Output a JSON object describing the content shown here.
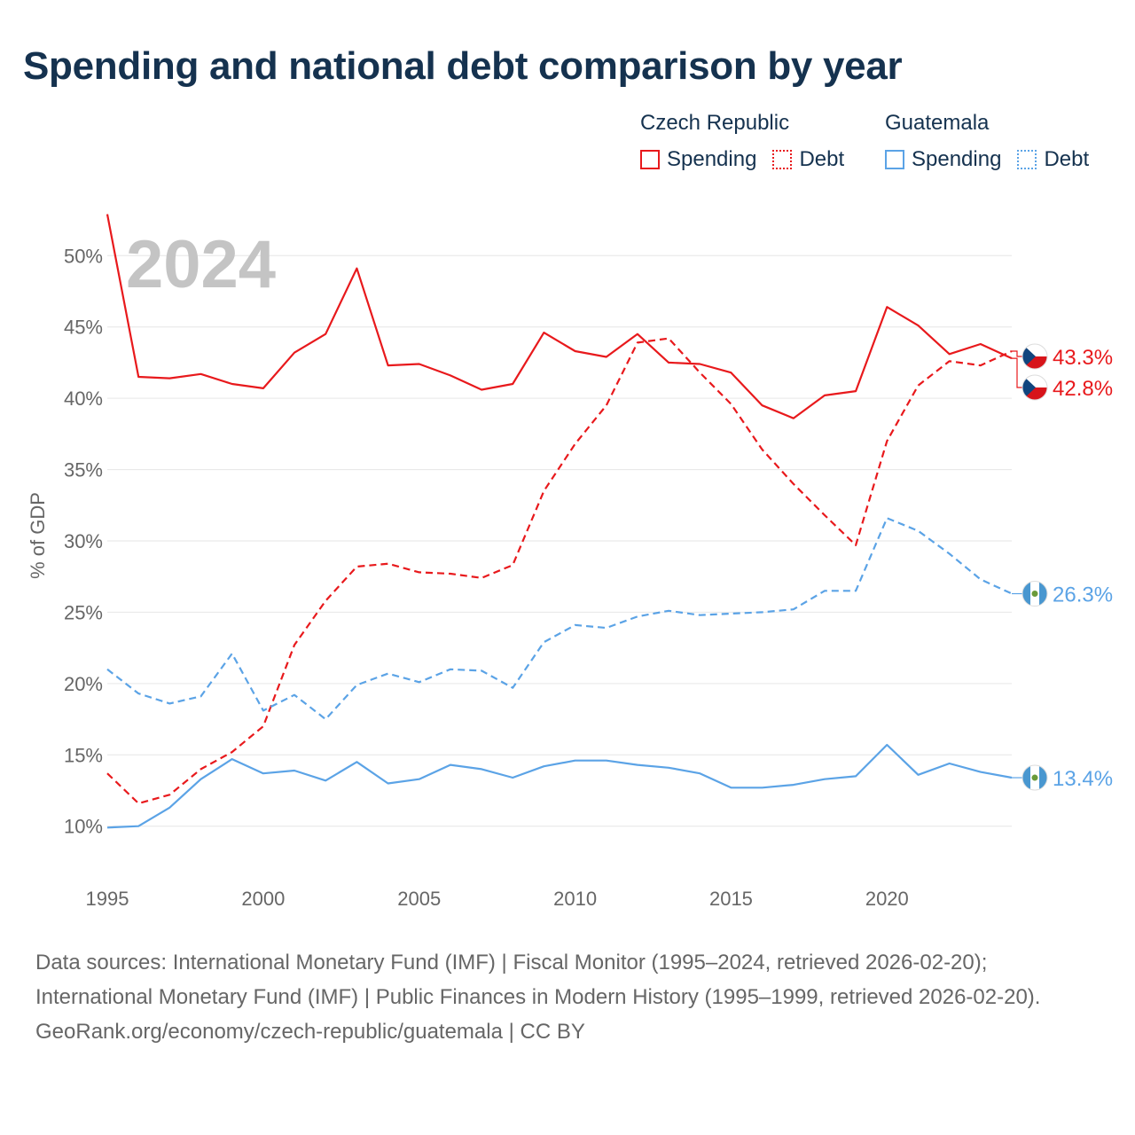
{
  "title": "Spending and national debt comparison by year",
  "legend": {
    "groups": [
      {
        "country": "Czech Republic",
        "items": [
          "Spending",
          "Debt"
        ]
      },
      {
        "country": "Guatemala",
        "items": [
          "Spending",
          "Debt"
        ]
      }
    ]
  },
  "colors": {
    "czech": "#e8191c",
    "guatemala": "#5ba3e6",
    "grid": "#e6e6e6",
    "axis_text": "#666666",
    "year_watermark": "#c4c4c4"
  },
  "chart_data": {
    "type": "line",
    "year_label": "2024",
    "ylabel": "% of GDP",
    "xlim": [
      1995,
      2024
    ],
    "ylim": [
      7,
      53
    ],
    "x_ticks": [
      1995,
      2000,
      2005,
      2010,
      2015,
      2020
    ],
    "y_ticks": [
      10,
      15,
      20,
      25,
      30,
      35,
      40,
      45,
      50
    ],
    "y_tick_labels": [
      "10%",
      "15%",
      "20%",
      "25%",
      "30%",
      "35%",
      "40%",
      "45%",
      "50%"
    ],
    "x": [
      1995,
      1996,
      1997,
      1998,
      1999,
      2000,
      2001,
      2002,
      2003,
      2004,
      2005,
      2006,
      2007,
      2008,
      2009,
      2010,
      2011,
      2012,
      2013,
      2014,
      2015,
      2016,
      2017,
      2018,
      2019,
      2020,
      2021,
      2022,
      2023,
      2024
    ],
    "series": [
      {
        "name": "Czech Republic Spending",
        "country": "czech",
        "style": "solid",
        "end_label": "42.8%",
        "values": [
          52.9,
          41.5,
          41.4,
          41.7,
          41.0,
          40.7,
          43.2,
          44.5,
          49.1,
          42.3,
          42.4,
          41.6,
          40.6,
          41.0,
          44.6,
          43.3,
          42.9,
          44.5,
          42.5,
          42.4,
          41.8,
          39.5,
          38.6,
          40.2,
          40.5,
          46.4,
          45.1,
          43.1,
          43.8,
          42.8
        ]
      },
      {
        "name": "Czech Republic Debt",
        "country": "czech",
        "style": "dashed",
        "end_label": "43.3%",
        "values": [
          13.7,
          11.6,
          12.2,
          14.0,
          15.2,
          17.0,
          22.7,
          25.8,
          28.2,
          28.4,
          27.8,
          27.7,
          27.4,
          28.3,
          33.5,
          36.8,
          39.5,
          43.9,
          44.2,
          41.8,
          39.6,
          36.4,
          34.0,
          31.8,
          29.7,
          37.0,
          40.9,
          42.6,
          42.3,
          43.3
        ]
      },
      {
        "name": "Guatemala Spending",
        "country": "guatemala",
        "style": "solid",
        "end_label": "13.4%",
        "values": [
          9.9,
          10.0,
          11.3,
          13.3,
          14.7,
          13.7,
          13.9,
          13.2,
          14.5,
          13.0,
          13.3,
          14.3,
          14.0,
          13.4,
          14.2,
          14.6,
          14.6,
          14.3,
          14.1,
          13.7,
          12.7,
          12.7,
          12.9,
          13.3,
          13.5,
          15.7,
          13.6,
          14.4,
          13.8,
          13.4
        ]
      },
      {
        "name": "Guatemala Debt",
        "country": "guatemala",
        "style": "dashed",
        "end_label": "26.3%",
        "values": [
          21.0,
          19.3,
          18.6,
          19.1,
          22.1,
          18.1,
          19.2,
          17.5,
          19.9,
          20.7,
          20.1,
          21.0,
          20.9,
          19.7,
          22.9,
          24.1,
          23.9,
          24.7,
          25.1,
          24.8,
          24.9,
          25.0,
          25.2,
          26.5,
          26.5,
          31.6,
          30.7,
          29.1,
          27.3,
          26.3
        ]
      }
    ]
  },
  "footer": {
    "sources": "Data sources: International Monetary Fund (IMF) | Fiscal Monitor (1995–2024, retrieved 2026-02-20); International Monetary Fund (IMF) | Public Finances in Modern History (1995–1999, retrieved 2026-02-20).",
    "attribution": "GeoRank.org/economy/czech-republic/guatemala | CC BY"
  }
}
